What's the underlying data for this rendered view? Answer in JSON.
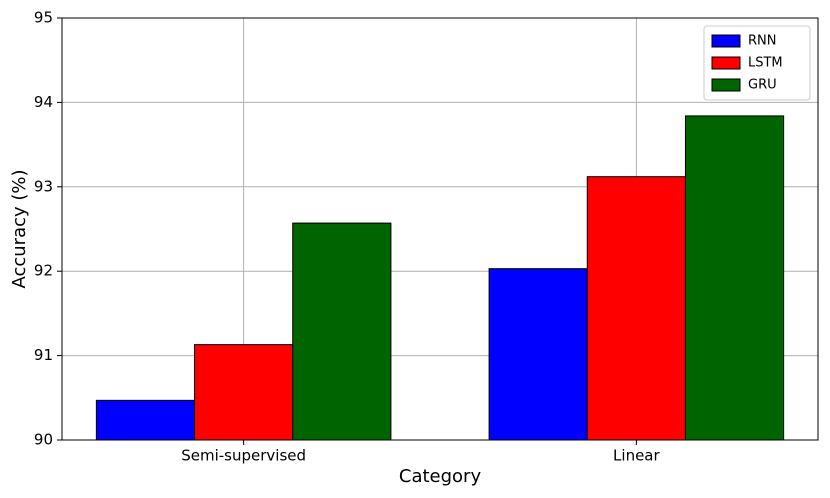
{
  "chart_data": {
    "type": "bar",
    "categories": [
      "Semi-supervised",
      "Linear"
    ],
    "series": [
      {
        "name": "RNN",
        "color": "#0000ff",
        "values": [
          90.47,
          92.03
        ]
      },
      {
        "name": "LSTM",
        "color": "#ff0000",
        "values": [
          91.13,
          93.12
        ]
      },
      {
        "name": "GRU",
        "color": "#006400",
        "values": [
          92.57,
          93.84
        ]
      }
    ],
    "x_label": "Category",
    "y_label": "Accuracy (%)",
    "ylim": [
      90,
      95
    ],
    "yticks": [
      90,
      91,
      92,
      93,
      94,
      95
    ],
    "grid": true,
    "legend": "upper-right"
  }
}
